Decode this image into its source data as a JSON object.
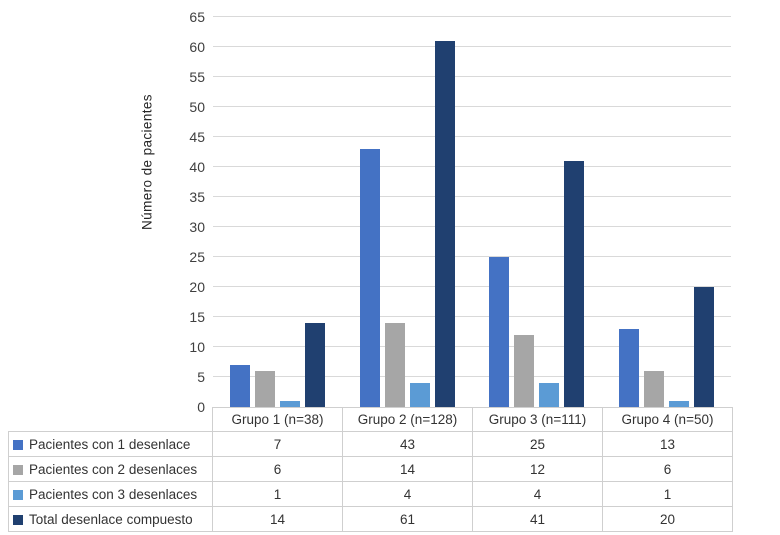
{
  "chart_data": {
    "type": "bar",
    "title": "",
    "xlabel": "",
    "ylabel": "Número de pacientes",
    "ylim": [
      0,
      65
    ],
    "ytick_step": 5,
    "grid": true,
    "gridline_color": "#d9d9d9",
    "legend_position": "table-left",
    "categories": [
      "Grupo 1 (n=38)",
      "Grupo 2 (n=128)",
      "Grupo 3 (n=111)",
      "Grupo 4 (n=50)"
    ],
    "series": [
      {
        "name": "Pacientes con  1 desenlace",
        "color": "#4472c4",
        "values": [
          7,
          43,
          25,
          13
        ]
      },
      {
        "name": "Pacientes con  2 desenlaces",
        "color": "#a6a6a6",
        "values": [
          6,
          14,
          12,
          6
        ]
      },
      {
        "name": "Pacientes con  3 desenlaces",
        "color": "#5b9bd5",
        "values": [
          1,
          4,
          4,
          1
        ]
      },
      {
        "name": "Total desenlace compuesto",
        "color": "#204070",
        "values": [
          14,
          61,
          41,
          20
        ]
      }
    ]
  }
}
